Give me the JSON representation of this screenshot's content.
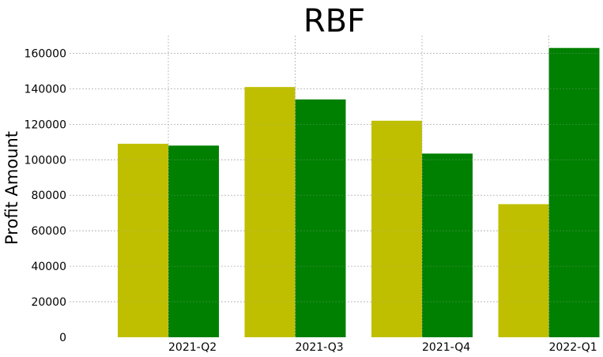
{
  "chart_data": {
    "type": "bar",
    "title": "RBF",
    "xlabel": "",
    "ylabel": "Profit Amount",
    "categories": [
      "2021-Q2",
      "2021-Q3",
      "2021-Q4",
      "2022-Q1"
    ],
    "series": [
      {
        "color": "#bfbf00",
        "values": [
          109000,
          141000,
          122000,
          75000
        ]
      },
      {
        "color": "#008000",
        "values": [
          108000,
          134000,
          103500,
          163000
        ]
      }
    ],
    "ylim": [
      0,
      170000
    ],
    "yticks": [
      0,
      20000,
      40000,
      60000,
      80000,
      100000,
      120000,
      140000,
      160000
    ],
    "grid": true,
    "legend": "none"
  }
}
